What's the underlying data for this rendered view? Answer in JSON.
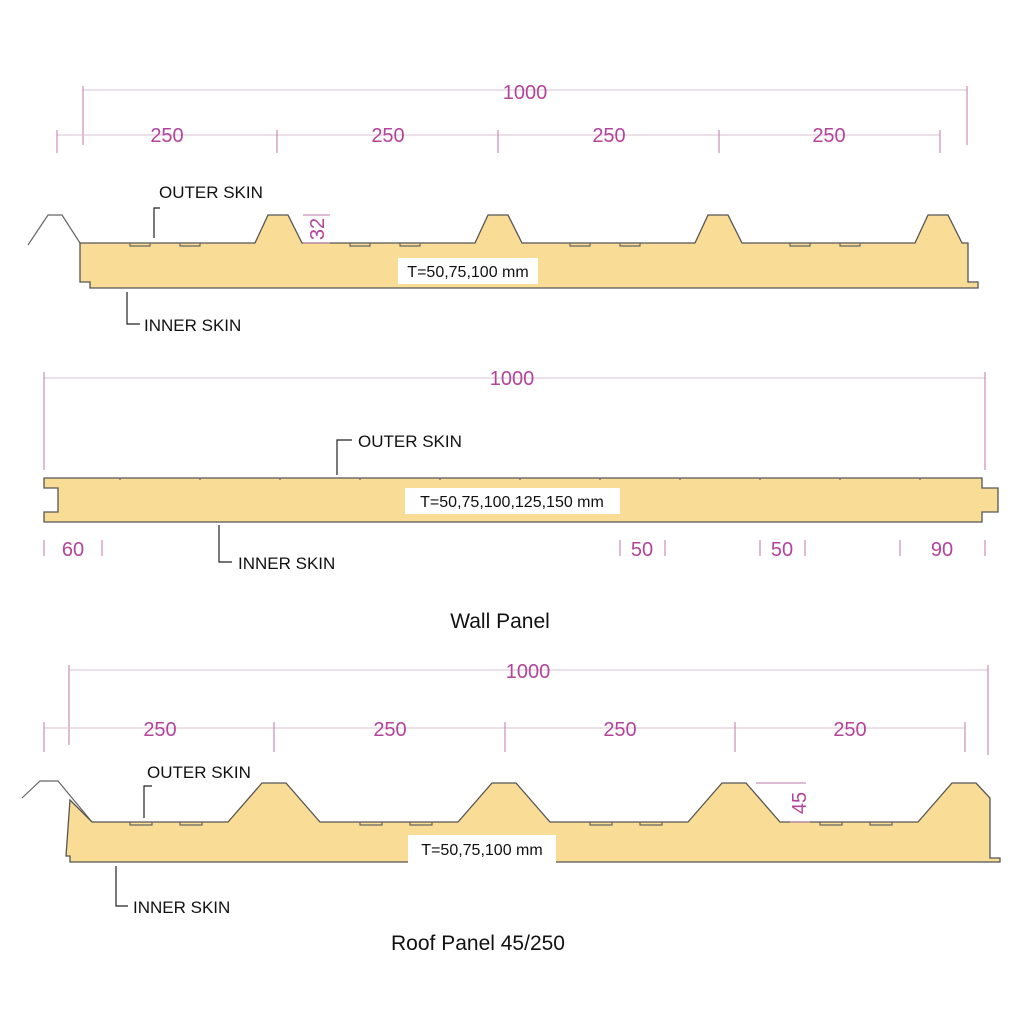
{
  "colors": {
    "core_fill": "#f9dc95",
    "dimension": "#b3449a",
    "label": "#111111"
  },
  "top_panel": {
    "overall_dim": "1000",
    "rib_dims": [
      "250",
      "250",
      "250",
      "250"
    ],
    "rib_height_dim": "32",
    "outer_skin_label": "OUTER SKIN",
    "inner_skin_label": "INNER SKIN",
    "thickness_label": "T=50,75,100 mm"
  },
  "wall_panel": {
    "overall_dim": "1000",
    "outer_skin_label": "OUTER SKIN",
    "inner_skin_label": "INNER SKIN",
    "thickness_label": "T=50,75,100,125,150 mm",
    "bottom_dims": [
      "60",
      "50",
      "50",
      "90"
    ],
    "title": "Wall Panel"
  },
  "roof_panel": {
    "overall_dim": "1000",
    "rib_dims": [
      "250",
      "250",
      "250",
      "250"
    ],
    "rib_height_dim": "45",
    "outer_skin_label": "OUTER SKIN",
    "inner_skin_label": "INNER SKIN",
    "thickness_label": "T=50,75,100 mm",
    "title": "Roof Panel 45/250"
  }
}
